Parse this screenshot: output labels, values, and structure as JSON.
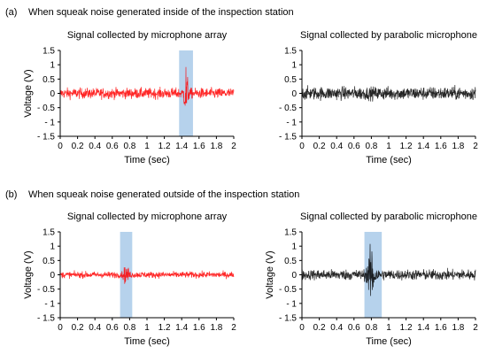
{
  "panels": [
    {
      "tag": "(a)",
      "caption": "When squeak noise generated inside of the inspection station",
      "chart_data": [
        {
          "type": "line",
          "title": "Signal collected by microphone array",
          "xlabel": "Time (sec)",
          "ylabel": "Voltage (V)",
          "xlim": [
            0,
            2
          ],
          "ylim": [
            -1.5,
            1.5
          ],
          "xticks": [
            "0",
            "0.2",
            "0.4",
            "0.6",
            "0.8",
            "1",
            "1.2",
            "1.4",
            "1.6",
            "1.8",
            "2"
          ],
          "yticks": [
            "1.5",
            "1",
            "0.5",
            "0",
            "- 0.5",
            "- 1",
            "- 1.5"
          ],
          "series_color": "#ff0000",
          "signal": {
            "base_amplitude": 0.2,
            "max_amplitude": 0.5,
            "burst": {
              "center": 1.45,
              "half_width": 0.02,
              "amplitude": 1.25
            }
          },
          "highlight": {
            "x_start": 1.37,
            "x_end": 1.53,
            "color": "#9dc3e6"
          }
        },
        {
          "type": "line",
          "title": "Signal collected by parabolic microphone",
          "xlabel": "Time (sec)",
          "ylabel": "",
          "xlim": [
            0,
            2
          ],
          "ylim": [
            -1.5,
            1.5
          ],
          "xticks": [
            "0",
            "0.2",
            "0.4",
            "0.6",
            "0.8",
            "1",
            "1.2",
            "1.4",
            "1.6",
            "1.8",
            "2"
          ],
          "yticks": [
            "1.5",
            "1",
            "0.5",
            "0",
            "- 0.5",
            "- 1",
            "- 1.5"
          ],
          "series_color": "#000000",
          "signal": {
            "base_amplitude": 0.25,
            "max_amplitude": 0.4,
            "burst": null
          },
          "highlight": null
        }
      ]
    },
    {
      "tag": "(b)",
      "caption": "When squeak noise generated outside of the inspection station",
      "chart_data": [
        {
          "type": "line",
          "title": "Signal collected by microphone array",
          "xlabel": "Time (sec)",
          "ylabel": "Voltage (V)",
          "xlim": [
            0,
            2
          ],
          "ylim": [
            -1.5,
            1.5
          ],
          "xticks": [
            "0",
            "0.2",
            "0.4",
            "0.6",
            "0.8",
            "1",
            "1.2",
            "1.4",
            "1.6",
            "1.8",
            "2"
          ],
          "yticks": [
            "1.5",
            "1",
            "0.5",
            "0",
            "- 0.5",
            "- 1",
            "- 1.5"
          ],
          "series_color": "#ff0000",
          "signal": {
            "base_amplitude": 0.12,
            "max_amplitude": 0.2,
            "burst": {
              "center": 0.76,
              "half_width": 0.03,
              "amplitude": 0.4
            }
          },
          "highlight": {
            "x_start": 0.69,
            "x_end": 0.83,
            "color": "#9dc3e6"
          }
        },
        {
          "type": "line",
          "title": "Signal collected by parabolic microphone",
          "xlabel": "Time (sec)",
          "ylabel": "Voltage (V)",
          "xlim": [
            0,
            2
          ],
          "ylim": [
            -1.5,
            1.5
          ],
          "xticks": [
            "0",
            "0.2",
            "0.4",
            "0.6",
            "0.8",
            "1",
            "1.2",
            "1.4",
            "1.6",
            "1.8",
            "2"
          ],
          "yticks": [
            "1.5",
            "1",
            "0.5",
            "0",
            "- 0.5",
            "- 1",
            "- 1.5"
          ],
          "series_color": "#000000",
          "signal": {
            "base_amplitude": 0.2,
            "max_amplitude": 0.45,
            "burst": {
              "center": 0.8,
              "half_width": 0.04,
              "amplitude": 1.2
            }
          },
          "highlight": {
            "x_start": 0.72,
            "x_end": 0.92,
            "color": "#9dc3e6"
          }
        }
      ]
    }
  ]
}
